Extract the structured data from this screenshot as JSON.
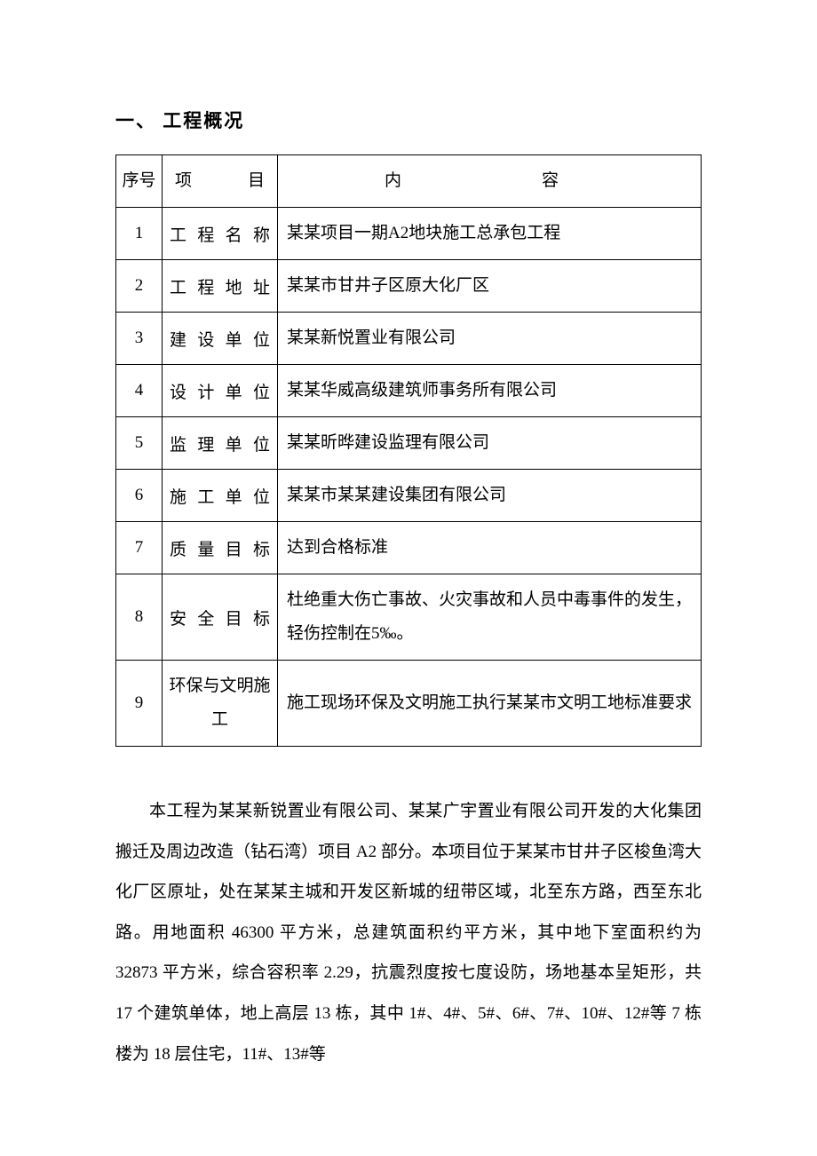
{
  "heading": "一、 工程概况",
  "table": {
    "headers": {
      "seq": "序号",
      "item": "项　　目",
      "content": "内　　容"
    },
    "rows": [
      {
        "seq": "1",
        "item": "工 程 名 称",
        "content": "某某项目一期A2地块施工总承包工程"
      },
      {
        "seq": "2",
        "item": "工 程 地 址",
        "content": "某某市甘井子区原大化厂区"
      },
      {
        "seq": "3",
        "item": "建 设 单 位",
        "content": "某某新悦置业有限公司"
      },
      {
        "seq": "4",
        "item": "设 计 单 位",
        "content": "某某华威高级建筑师事务所有限公司"
      },
      {
        "seq": "5",
        "item": "监 理 单 位",
        "content": "某某昕晔建设监理有限公司"
      },
      {
        "seq": "6",
        "item": "施 工 单 位",
        "content": "某某市某某建设集团有限公司"
      },
      {
        "seq": "7",
        "item": "质 量 目 标",
        "content": "达到合格标准"
      },
      {
        "seq": "8",
        "item": "安 全 目 标",
        "content": "杜绝重大伤亡事故、火灾事故和人员中毒事件的发生，轻伤控制在5‰。"
      },
      {
        "seq": "9",
        "item": "环保与文明施工",
        "content": "施工现场环保及文明施工执行某某市文明工地标准要求"
      }
    ]
  },
  "paragraph": "本工程为某某新锐置业有限公司、某某广宇置业有限公司开发的大化集团搬迁及周边改造（钻石湾）项目 A2 部分。本项目位于某某市甘井子区梭鱼湾大化厂区原址，处在某某主城和开发区新城的纽带区域，北至东方路，西至东北路。用地面积 46300 平方米，总建筑面积约平方米，其中地下室面积约为 32873 平方米，综合容积率 2.29，抗震烈度按七度设防，场地基本呈矩形，共 17 个建筑单体，地上高层 13 栋，其中 1#、4#、5#、6#、7#、10#、12#等 7 栋楼为 18 层住宅，11#、13#等"
}
